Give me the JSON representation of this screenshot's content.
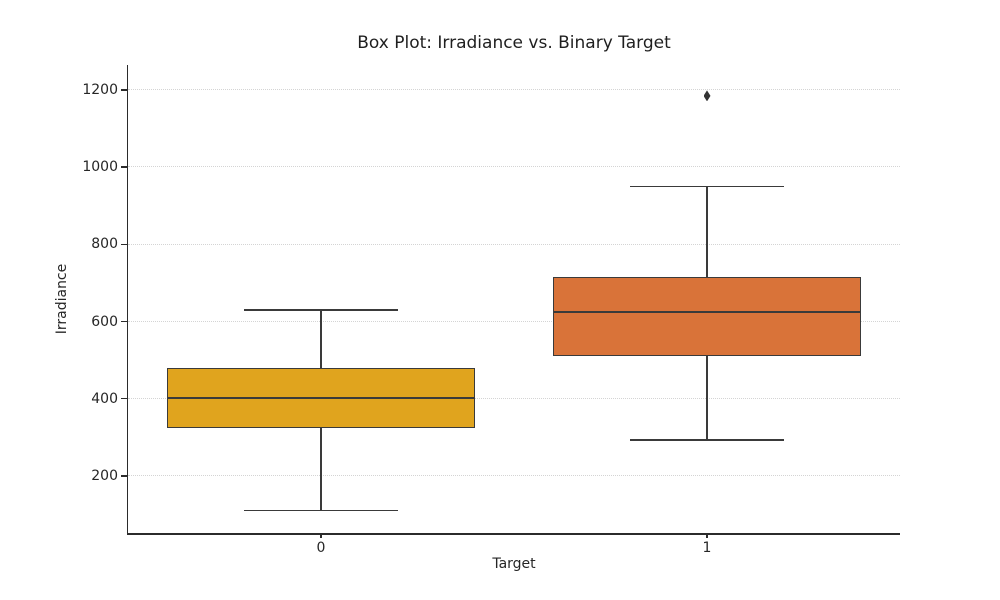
{
  "chart_data": {
    "type": "box",
    "title": "Box Plot: Irradiance vs. Binary Target",
    "xlabel": "Target",
    "ylabel": "Irradiance",
    "categories": [
      "0",
      "1"
    ],
    "ylim": [
      52,
      1265
    ],
    "yticks": [
      200,
      400,
      600,
      800,
      1000,
      1200
    ],
    "grid": "horizontal-dotted",
    "legend": "none",
    "series": [
      {
        "category": "0",
        "whisker_low": 110,
        "q1": 323,
        "median": 403,
        "q3": 480,
        "whisker_high": 630,
        "outliers": [],
        "fill_color": "#E0A41E"
      },
      {
        "category": "1",
        "whisker_low": 293,
        "q1": 510,
        "median": 625,
        "q3": 716,
        "whisker_high": 950,
        "outliers": [
          1185
        ],
        "fill_color": "#D97339"
      }
    ],
    "style": {
      "line_color": "#3a3a3a",
      "grid_color": "#d4d4d4",
      "spine_color": "#2b2b2b",
      "text_color": "#262626",
      "background": "#ffffff"
    }
  }
}
